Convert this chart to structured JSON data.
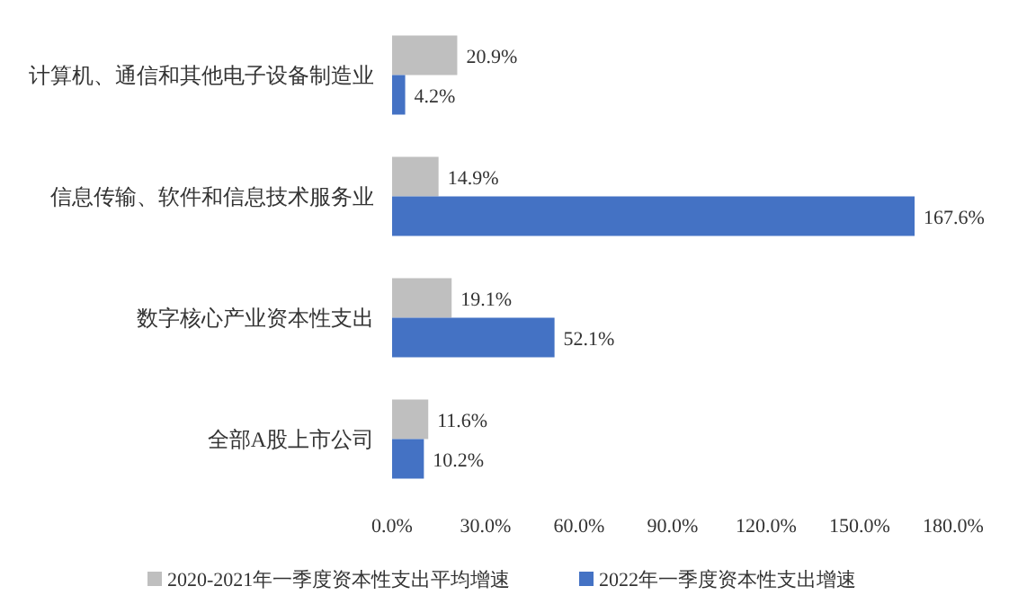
{
  "chart_data": {
    "type": "bar",
    "orientation": "horizontal",
    "categories": [
      "计算机、通信和其他电子设备制造业",
      "信息传输、软件和信息技术服务业",
      "数字核心产业资本性支出",
      "全部A股上市公司"
    ],
    "series": [
      {
        "name": "2020-2021年一季度资本性支出平均增速",
        "color": "#bfbfbf",
        "values": [
          20.9,
          14.9,
          19.1,
          11.6
        ],
        "value_labels": [
          "20.9%",
          "14.9%",
          "19.1%",
          "11.6%"
        ]
      },
      {
        "name": "2022年一季度资本性支出增速",
        "color": "#4472c4",
        "values": [
          4.2,
          167.6,
          52.1,
          10.2
        ],
        "value_labels": [
          "4.2%",
          "167.6%",
          "52.1%",
          "10.2%"
        ]
      }
    ],
    "xlim": [
      0,
      180
    ],
    "xticks": [
      {
        "value": 0,
        "label": "0.0%"
      },
      {
        "value": 30,
        "label": "30.0%"
      },
      {
        "value": 60,
        "label": "60.0%"
      },
      {
        "value": 90,
        "label": "90.0%"
      },
      {
        "value": 120,
        "label": "120.0%"
      },
      {
        "value": 150,
        "label": "150.0%"
      },
      {
        "value": 180,
        "label": "180.0%"
      }
    ],
    "legend": "bottom"
  }
}
